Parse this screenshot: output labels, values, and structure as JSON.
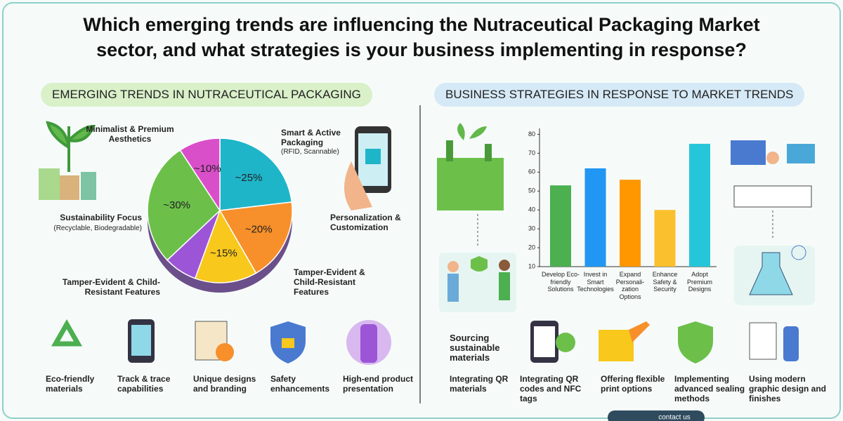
{
  "title_lines": [
    "Which emerging trends are influencing the Nutraceutical Packaging Market",
    "sector, and what strategies is your business implementing in response?"
  ],
  "left_heading": "EMERGING TRENDS IN NUTRACEUTICAL PACKAGING",
  "right_heading": "BUSINESS STRATEGIES IN RESPONSE TO MARKET TRENDS",
  "chart_data": [
    {
      "type": "pie",
      "categories": [
        "Smart & Active Packaging",
        "Personalization & Customization",
        "Tamper-Evident & Child-Resistant Features",
        "Tamper-Evident & Child-Resistant Features",
        "Sustainability Focus",
        "Minimalist & Premium Aesthetics"
      ],
      "notes": [
        "(RFID, Scannable)",
        null,
        null,
        null,
        "(Recyclable, Biodegradable)",
        null
      ],
      "values": [
        25,
        20,
        15,
        8,
        30,
        10
      ],
      "value_labels": [
        "~25%",
        "~20%",
        "~15%",
        null,
        "~30%",
        "~10%"
      ],
      "colors": [
        "#1fb5c9",
        "#f7902a",
        "#f8c81c",
        "#9c55d6",
        "#6cc04a",
        "#d94fc9"
      ]
    },
    {
      "type": "bar",
      "categories": [
        "Develop Eco-friendly Solutions",
        "Invest in Smart Technologies",
        "Expand Personali-zation Options",
        "Enhance Safety & Security",
        "Adopt Premium Designs"
      ],
      "values": [
        53,
        62,
        56,
        40,
        75
      ],
      "colors": [
        "#4caf50",
        "#2196f3",
        "#ff9800",
        "#fbc02d",
        "#26c6da"
      ],
      "ylim": [
        10,
        85
      ],
      "yticks": [
        10,
        20,
        30,
        40,
        50,
        60,
        70,
        80
      ]
    }
  ],
  "left_features": [
    "Eco-friendly materials",
    "Track & trace capabilities",
    "Unique designs and branding",
    "Safety enhancements",
    "High-end product presentation"
  ],
  "side_note": "Sourcing sustainable materials",
  "right_features": [
    "Integrating QR materials",
    "Integrating QR codes and NFC tags",
    "Offering flexible print options",
    "Implementing advanced sealing methods",
    "Using modern graphic design and finishes"
  ],
  "footer": "contact us"
}
